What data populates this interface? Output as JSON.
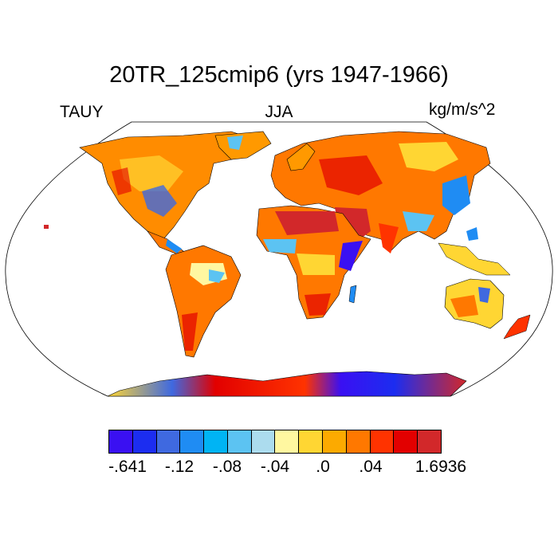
{
  "title": "20TR_125cmip6 (yrs 1947-1966)",
  "left_label": "TAUY",
  "center_label": "JJA",
  "right_label": "kg/m/s^2",
  "colorbar": {
    "colors": [
      "#3a10f2",
      "#1c2df0",
      "#3f69e0",
      "#1f8cf3",
      "#00b4f4",
      "#5cc3f2",
      "#acdcee",
      "#fff7a0",
      "#ffd633",
      "#fcaa00",
      "#ff7800",
      "#ff3300",
      "#e20000",
      "#d2282a"
    ],
    "labels": [
      "-.641",
      "-.12",
      "-.08",
      "-.04",
      ".0",
      ".04",
      "1.6936"
    ]
  }
}
